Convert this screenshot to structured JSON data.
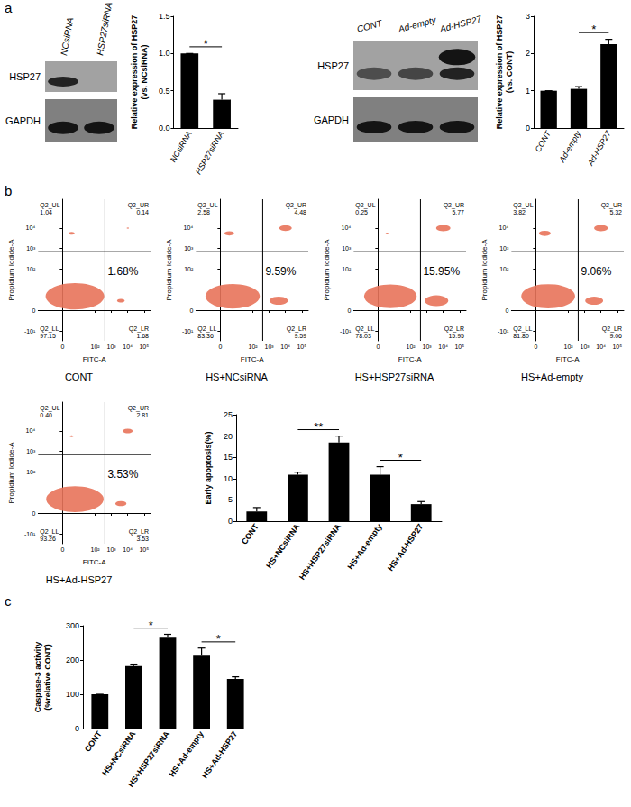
{
  "panel_labels": [
    "a",
    "b",
    "c"
  ],
  "blots": [
    {
      "lanes": [
        "NCsiRNA",
        "HSP27siRNA"
      ],
      "rows": [
        {
          "label": "HSP27",
          "bands": [
            0.9,
            0.0
          ]
        },
        {
          "label": "GAPDH",
          "bands": [
            1.0,
            1.0
          ]
        }
      ]
    },
    {
      "lanes": [
        "CONT",
        "Ad-empty",
        "Ad-HSP27"
      ],
      "rows": [
        {
          "label": "HSP27",
          "bands": [
            0.6,
            0.65,
            0.9
          ],
          "upper_bands": [
            0.0,
            0.0,
            1.0
          ]
        },
        {
          "label": "GAPDH",
          "bands": [
            1.0,
            1.0,
            1.0
          ]
        }
      ]
    }
  ],
  "chart_data": [
    {
      "type": "bar",
      "y_label": "Relative expression of HSP27\n(vs. NCsiRNA)",
      "categories": [
        "NCsiRNA",
        "HSP27siRNA"
      ],
      "values": [
        1.0,
        0.38
      ],
      "errors": [
        0,
        0.08
      ],
      "color": "#000000",
      "ylim": [
        0,
        1.5
      ],
      "yticks": [
        {
          "value": 0,
          "label": "0.0"
        },
        0.5,
        {
          "value": 1,
          "label": "1.0"
        },
        1.5
      ],
      "grid": false,
      "significance": [
        {
          "between": [
            0,
            1
          ],
          "label": "*"
        }
      ]
    },
    {
      "type": "bar",
      "y_label": "Relative expression of HSP27\n(vs. CONT)",
      "categories": [
        "CONT",
        "Ad-empty",
        "Ad-HSP27"
      ],
      "values": [
        1.0,
        1.05,
        2.25
      ],
      "errors": [
        0,
        0.06,
        0.13
      ],
      "color": "#000000",
      "ylim": [
        0,
        3
      ],
      "yticks": [
        0,
        1,
        2,
        3
      ],
      "grid": false,
      "significance": [
        {
          "between": [
            1,
            2
          ],
          "label": "*"
        }
      ]
    },
    {
      "type": "flow",
      "title": "CONT",
      "x_label": "FITC-A",
      "y_label": "Propidium Iodide-A",
      "xlim": [
        -30,
        250000
      ],
      "ylim": [
        -30,
        250000
      ],
      "xticks": [
        0,
        {
          "value": 100,
          "label": "10²"
        },
        {
          "value": 1000,
          "label": "10³"
        },
        {
          "value": 10000,
          "label": "10⁴"
        },
        {
          "value": 100000,
          "label": "10⁵"
        }
      ],
      "yticks": [
        {
          "value": -10,
          "label": "-10¹"
        },
        0,
        {
          "value": 100,
          "label": "10²"
        },
        {
          "value": 1000,
          "label": "10³"
        },
        {
          "value": 10000,
          "label": "10⁴"
        }
      ],
      "gate": [
        400,
        700
      ],
      "grid": false,
      "color": "#e8735a",
      "quadrant_names": [
        "Q2_UL",
        "Q2_UR",
        "Q2_LL",
        "Q2_LR"
      ],
      "quadrants": [
        1.04,
        0.14,
        97.15,
        1.68
      ],
      "quadrant_labels": [
        "1.04",
        "0.14",
        "97.15",
        "1.68"
      ],
      "lr_label": "1.68%"
    },
    {
      "type": "flow",
      "title": "HS+NCsiRNA",
      "x_label": "FITC-A",
      "y_label": "Propidium Iodide-A",
      "xlim": [
        -30,
        250000
      ],
      "ylim": [
        -30,
        250000
      ],
      "xticks": [
        0,
        {
          "value": 100,
          "label": "10²"
        },
        {
          "value": 1000,
          "label": "10³"
        },
        {
          "value": 10000,
          "label": "10⁴"
        },
        {
          "value": 100000,
          "label": "10⁵"
        }
      ],
      "yticks": [
        {
          "value": -10,
          "label": "-10¹"
        },
        0,
        {
          "value": 100,
          "label": "10²"
        },
        {
          "value": 1000,
          "label": "10³"
        },
        {
          "value": 10000,
          "label": "10⁴"
        }
      ],
      "gate": [
        400,
        700
      ],
      "grid": false,
      "color": "#e8735a",
      "quadrant_names": [
        "Q2_UL",
        "Q2_UR",
        "Q2_LL",
        "Q2_LR"
      ],
      "quadrants": [
        2.58,
        4.48,
        83.36,
        9.59
      ],
      "quadrant_labels": [
        "2.58",
        "4.48",
        "83.36",
        "9.59"
      ],
      "lr_label": "9.59%"
    },
    {
      "type": "flow",
      "title": "HS+HSP27siRNA",
      "x_label": "FITC-A",
      "y_label": "Propidium Iodide-A",
      "xlim": [
        -30,
        250000
      ],
      "ylim": [
        -30,
        250000
      ],
      "xticks": [
        0,
        {
          "value": 100,
          "label": "10²"
        },
        {
          "value": 1000,
          "label": "10³"
        },
        {
          "value": 10000,
          "label": "10⁴"
        },
        {
          "value": 100000,
          "label": "10⁵"
        }
      ],
      "yticks": [
        {
          "value": -10,
          "label": "-10¹"
        },
        0,
        {
          "value": 100,
          "label": "10²"
        },
        {
          "value": 1000,
          "label": "10³"
        },
        {
          "value": 10000,
          "label": "10⁴"
        }
      ],
      "gate": [
        400,
        700
      ],
      "grid": false,
      "color": "#e8735a",
      "quadrant_names": [
        "Q2_UL",
        "Q2_UR",
        "Q2_LL",
        "Q2_LR"
      ],
      "quadrants": [
        0.25,
        5.77,
        78.03,
        15.95
      ],
      "quadrant_labels": [
        "0.25",
        "5.77",
        "78.03",
        "15.95"
      ],
      "lr_label": "15.95%"
    },
    {
      "type": "flow",
      "title": "HS+Ad-empty",
      "x_label": "FITC-A",
      "y_label": "Propidium Iodide-A",
      "xlim": [
        -30,
        250000
      ],
      "ylim": [
        -30,
        250000
      ],
      "xticks": [
        0,
        {
          "value": 100,
          "label": "10²"
        },
        {
          "value": 1000,
          "label": "10³"
        },
        {
          "value": 10000,
          "label": "10⁴"
        },
        {
          "value": 100000,
          "label": "10⁵"
        }
      ],
      "yticks": [
        {
          "value": -10,
          "label": "-10¹"
        },
        0,
        {
          "value": 100,
          "label": "10²"
        },
        {
          "value": 1000,
          "label": "10³"
        },
        {
          "value": 10000,
          "label": "10⁴"
        }
      ],
      "gate": [
        400,
        700
      ],
      "grid": false,
      "color": "#e8735a",
      "quadrant_names": [
        "Q2_UL",
        "Q2_UR",
        "Q2_LL",
        "Q2_LR"
      ],
      "quadrants": [
        3.82,
        5.32,
        81.8,
        9.06
      ],
      "quadrant_labels": [
        "3.82",
        "5.32",
        "81.80",
        "9.06"
      ],
      "lr_label": "9.06%"
    },
    {
      "type": "flow",
      "title": "HS+Ad-HSP27",
      "x_label": "FITC-A",
      "y_label": "Propidium Iodide-A",
      "xlim": [
        -30,
        250000
      ],
      "ylim": [
        -30,
        250000
      ],
      "xticks": [
        0,
        {
          "value": 100,
          "label": "10²"
        },
        {
          "value": 1000,
          "label": "10³"
        },
        {
          "value": 10000,
          "label": "10⁴"
        },
        {
          "value": 100000,
          "label": "10⁵"
        }
      ],
      "yticks": [
        {
          "value": -10,
          "label": "-10¹"
        },
        0,
        {
          "value": 100,
          "label": "10²"
        },
        {
          "value": 1000,
          "label": "10³"
        },
        {
          "value": 10000,
          "label": "10⁴"
        }
      ],
      "gate": [
        400,
        700
      ],
      "grid": false,
      "color": "#e8735a",
      "quadrant_names": [
        "Q2_UL",
        "Q2_UR",
        "Q2_LL",
        "Q2_LR"
      ],
      "quadrants": [
        0.4,
        2.81,
        93.26,
        3.53
      ],
      "quadrant_labels": [
        "0.40",
        "2.81",
        "93.26",
        "3.53"
      ],
      "lr_label": "3.53%"
    },
    {
      "type": "bar",
      "y_label": "Early apoptosis(%)",
      "categories": [
        "CONT",
        "HS+NCsiRNA",
        "HS+HSP27siRNA",
        "HS+Ad-empty",
        "HS+Ad-HSP27"
      ],
      "values": [
        2.3,
        10.9,
        18.5,
        10.9,
        4.0
      ],
      "errors": [
        0.9,
        0.6,
        1.5,
        1.9,
        0.6
      ],
      "color": "#000000",
      "ylim": [
        0,
        25
      ],
      "yticks": [
        0,
        5,
        10,
        15,
        20,
        25
      ],
      "grid": false,
      "significance": [
        {
          "between": [
            1,
            2
          ],
          "label": "**"
        },
        {
          "between": [
            3,
            4
          ],
          "label": "*"
        }
      ]
    },
    {
      "type": "bar",
      "y_label": "Caspase-3 activity\n(%relative CONT)",
      "categories": [
        "CONT",
        "HS+NCsiRNA",
        "HS+HSP27siRNA",
        "HS+Ad-empty",
        "HS+Ad-HSP27"
      ],
      "values": [
        100,
        182,
        265,
        215,
        145
      ],
      "errors": [
        0,
        6,
        10,
        20,
        6
      ],
      "color": "#000000",
      "ylim": [
        0,
        300
      ],
      "yticks": [
        0,
        100,
        200,
        300
      ],
      "grid": false,
      "significance": [
        {
          "between": [
            1,
            2
          ],
          "label": "*"
        },
        {
          "between": [
            3,
            4
          ],
          "label": "*"
        }
      ]
    }
  ]
}
